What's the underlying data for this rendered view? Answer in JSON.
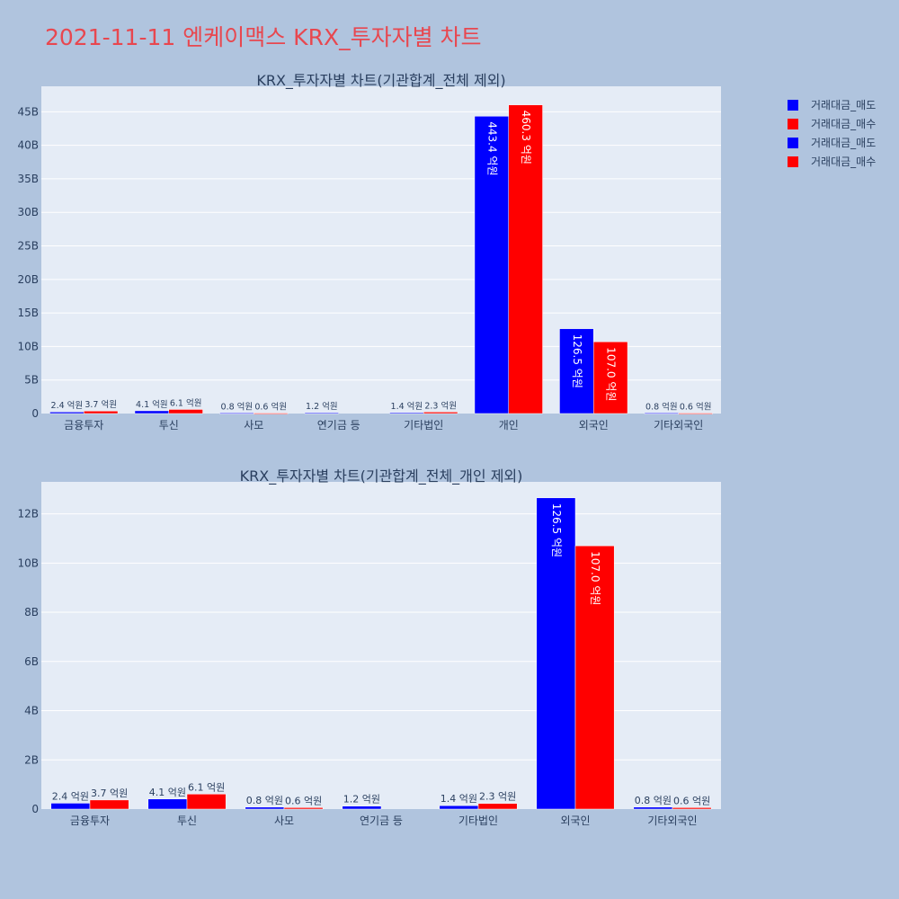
{
  "title": "2021-11-11 엔케이맥스 KRX_투자자별 차트",
  "colors": {
    "sell": "#0000ff",
    "buy": "#ff0000",
    "plot_bg": "#e5ecf6",
    "page_bg": "#b0c4de",
    "title": "#e8474f"
  },
  "legend": [
    {
      "label": "거래대금_매도",
      "color": "#0000ff"
    },
    {
      "label": "거래대금_매수",
      "color": "#ff0000"
    },
    {
      "label": "거래대금_매도",
      "color": "#0000ff"
    },
    {
      "label": "거래대금_매수",
      "color": "#ff0000"
    }
  ],
  "chart_data": [
    {
      "type": "bar",
      "title": "KRX_투자자별 차트(기관합계_전체 제외)",
      "categories": [
        "금융투자",
        "투신",
        "사모",
        "연기금 등",
        "기타법인",
        "개인",
        "외국인",
        "기타외국인"
      ],
      "series": [
        {
          "name": "거래대금_매도",
          "color": "#0000ff",
          "values": [
            240000000,
            410000000,
            80000000,
            120000000,
            140000000,
            44340000000,
            12650000000,
            80000000
          ],
          "labels": [
            "2.4 억원",
            "4.1 억원",
            "0.8 억원",
            "1.2 억원",
            "1.4 억원",
            "443.4 억원",
            "126.5 억원",
            "0.8 억원"
          ]
        },
        {
          "name": "거래대금_매수",
          "color": "#ff0000",
          "values": [
            370000000,
            610000000,
            60000000,
            0,
            230000000,
            46030000000,
            10700000000,
            60000000
          ],
          "labels": [
            "3.7 억원",
            "6.1 억원",
            "0.6 억원",
            "",
            "2.3 억원",
            "460.3 억원",
            "107.0 억원",
            "0.6 억원"
          ]
        }
      ],
      "ylim": [
        0,
        48800000000
      ],
      "yticks": [
        0,
        5000000000,
        10000000000,
        15000000000,
        20000000000,
        25000000000,
        30000000000,
        35000000000,
        40000000000,
        45000000000
      ],
      "ytick_labels": [
        "0",
        "5B",
        "10B",
        "15B",
        "20B",
        "25B",
        "30B",
        "35B",
        "40B",
        "45B"
      ],
      "grid": true,
      "legend_position": "right"
    },
    {
      "type": "bar",
      "title": "KRX_투자자별 차트(기관합계_전체_개인 제외)",
      "categories": [
        "금융투자",
        "투신",
        "사모",
        "연기금 등",
        "기타법인",
        "외국인",
        "기타외국인"
      ],
      "series": [
        {
          "name": "거래대금_매도",
          "color": "#0000ff",
          "values": [
            240000000,
            410000000,
            80000000,
            120000000,
            140000000,
            12650000000,
            80000000
          ],
          "labels": [
            "2.4 억원",
            "4.1 억원",
            "0.8 억원",
            "1.2 억원",
            "1.4 억원",
            "126.5 억원",
            "0.8 억원"
          ]
        },
        {
          "name": "거래대금_매수",
          "color": "#ff0000",
          "values": [
            370000000,
            610000000,
            60000000,
            0,
            230000000,
            10700000000,
            60000000
          ],
          "labels": [
            "3.7 억원",
            "6.1 억원",
            "0.6 억원",
            "",
            "2.3 억원",
            "107.0 억원",
            "0.6 억원"
          ]
        }
      ],
      "ylim": [
        0,
        13300000000
      ],
      "yticks": [
        0,
        2000000000,
        4000000000,
        6000000000,
        8000000000,
        10000000000,
        12000000000
      ],
      "ytick_labels": [
        "0",
        "2B",
        "4B",
        "6B",
        "8B",
        "10B",
        "12B"
      ],
      "grid": true,
      "legend_position": "right"
    }
  ]
}
